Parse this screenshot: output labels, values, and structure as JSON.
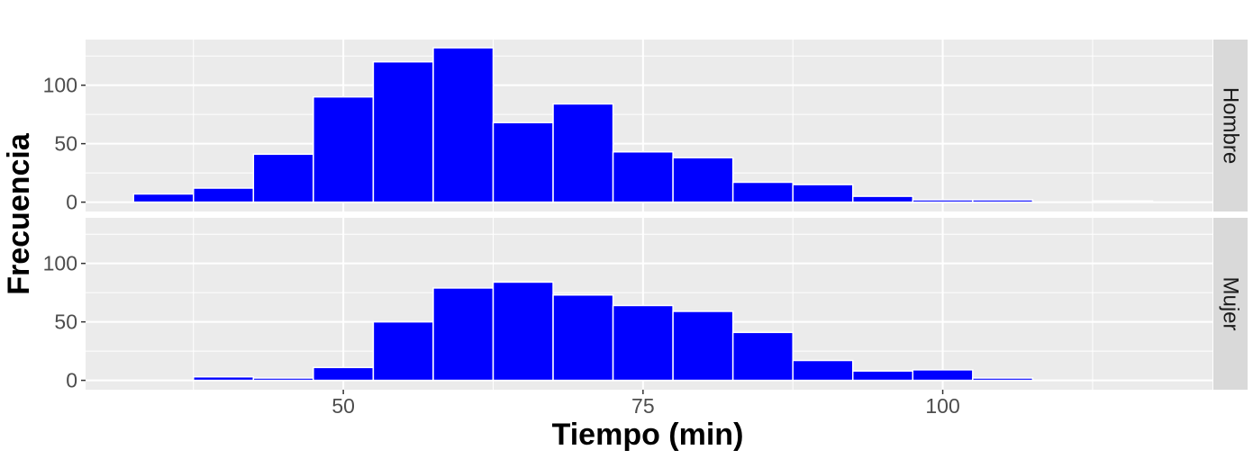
{
  "chart_data": {
    "type": "bar",
    "subtype": "faceted-histogram",
    "xlabel": "Tiempo (min)",
    "ylabel": "Frecuencia",
    "xlim": [
      28.5,
      122.5
    ],
    "ylim": [
      -8,
      139
    ],
    "x_ticks": [
      50,
      75,
      100
    ],
    "x_tick_labels": [
      "50",
      "75",
      "100"
    ],
    "y_ticks": [
      0,
      50,
      100
    ],
    "y_tick_labels": [
      "0",
      "50",
      "100"
    ],
    "bin_width": 5,
    "bin_starts": [
      32.5,
      37.5,
      42.5,
      47.5,
      52.5,
      57.5,
      62.5,
      67.5,
      72.5,
      77.5,
      82.5,
      87.5,
      92.5,
      97.5,
      102.5,
      107.5,
      112.5
    ],
    "grid": true,
    "bar_color": "#0000ff",
    "bar_outline": "#ffffff",
    "panel_background": "#ebebeb",
    "strip_background": "#d9d9d9",
    "facets": [
      {
        "name": "Hombre",
        "values": [
          7,
          12,
          41,
          90,
          120,
          132,
          68,
          84,
          43,
          38,
          17,
          15,
          5,
          2,
          2,
          0,
          1
        ]
      },
      {
        "name": "Mujer",
        "values": [
          0,
          3,
          2,
          11,
          50,
          79,
          84,
          73,
          64,
          59,
          41,
          17,
          8,
          9,
          2,
          0,
          0
        ]
      }
    ]
  }
}
